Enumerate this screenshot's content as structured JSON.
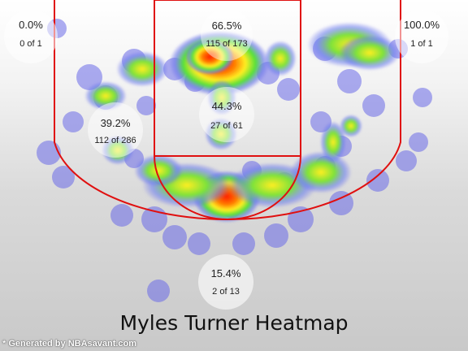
{
  "title": "Myles Turner Heatmap",
  "credit": "* Generated by NBAsavant.com",
  "chart_data": {
    "type": "heatmap",
    "title": "Myles Turner Heatmap",
    "zones": [
      {
        "id": "left-corner-three",
        "pct_label": "0.0%",
        "count_label": "0 of 1",
        "made": 0,
        "attempts": 1,
        "fg_pct": 0.0
      },
      {
        "id": "restricted-area",
        "pct_label": "66.5%",
        "count_label": "115 of 173",
        "made": 115,
        "attempts": 173,
        "fg_pct": 66.5
      },
      {
        "id": "right-corner-three",
        "pct_label": "100.0%",
        "count_label": "1 of 1",
        "made": 1,
        "attempts": 1,
        "fg_pct": 100.0
      },
      {
        "id": "left-midrange",
        "pct_label": "39.2%",
        "count_label": "112 of 286",
        "made": 112,
        "attempts": 286,
        "fg_pct": 39.2
      },
      {
        "id": "paint",
        "pct_label": "44.3%",
        "count_label": "27 of 61",
        "made": 27,
        "attempts": 61,
        "fg_pct": 44.3
      },
      {
        "id": "above-break-three",
        "pct_label": "15.4%",
        "count_label": "2 of 13",
        "made": 2,
        "attempts": 13,
        "fg_pct": 15.4
      }
    ],
    "hotspots": [
      {
        "area": "restricted-area",
        "intensity": 1.0
      },
      {
        "area": "free-throw-top",
        "intensity": 0.95
      },
      {
        "area": "elbow-right",
        "intensity": 0.6
      },
      {
        "area": "elbow-left",
        "intensity": 0.5
      },
      {
        "area": "paint",
        "intensity": 0.5
      },
      {
        "area": "right-wing-long",
        "intensity": 0.45
      },
      {
        "area": "left-wing-mid",
        "intensity": 0.4
      }
    ],
    "colors": {
      "court_lines": "#e01010",
      "scale_low": "#7777ee",
      "scale_mid": "#33dd33",
      "scale_high_mid": "#ffff22",
      "scale_high": "#ff2200"
    }
  }
}
